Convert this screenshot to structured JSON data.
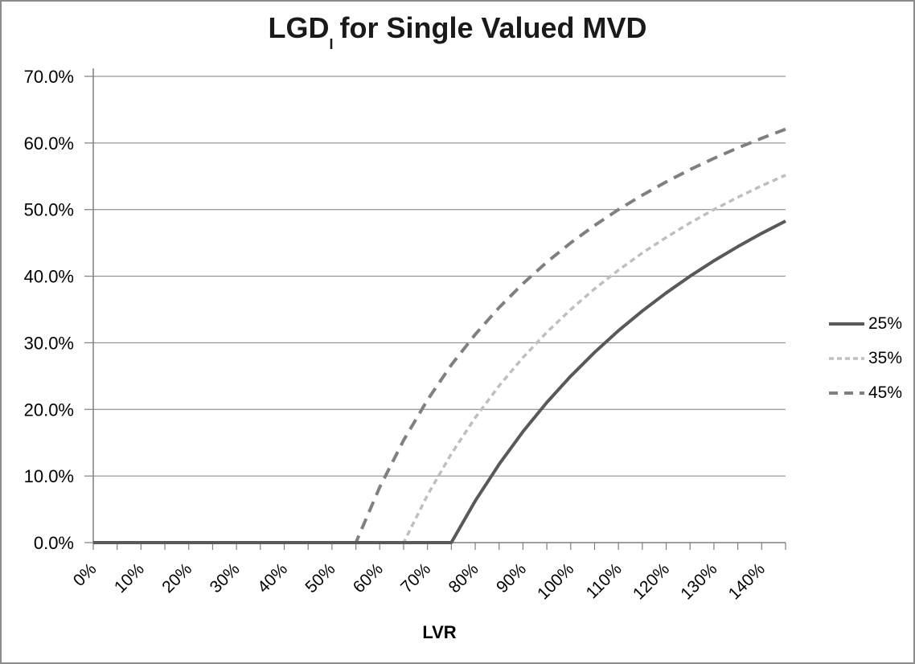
{
  "window": {
    "background": "#ffffff",
    "border_color": "#8c8c8c"
  },
  "title": {
    "prefix": "LGD",
    "subscript": "I",
    "suffix": "for Single Valued MVD"
  },
  "chart_data": {
    "type": "line",
    "title": "LGD_I for Single Valued MVD",
    "xlabel": "LVR",
    "ylabel": "",
    "x": [
      0,
      5,
      10,
      15,
      20,
      25,
      30,
      35,
      40,
      45,
      50,
      55,
      60,
      65,
      70,
      75,
      80,
      85,
      90,
      95,
      100,
      105,
      110,
      115,
      120,
      125,
      130,
      135,
      140,
      145
    ],
    "xlim": [
      0,
      145
    ],
    "ylim": [
      0,
      70
    ],
    "x_major_tick_step": 10,
    "x_minor_tick_step": 5,
    "y_tick_step": 10,
    "x_tick_labels": [
      "0%",
      "10%",
      "20%",
      "30%",
      "40%",
      "50%",
      "60%",
      "70%",
      "80%",
      "90%",
      "100%",
      "110%",
      "120%",
      "130%",
      "140%"
    ],
    "y_tick_labels": [
      "0.0%",
      "10.0%",
      "20.0%",
      "30.0%",
      "40.0%",
      "50.0%",
      "60.0%",
      "70.0%"
    ],
    "grid": "horizontal",
    "legend_position": "right",
    "axis_color": "#7f7f7f",
    "gridline_color": "#7f7f7f",
    "text_color": "#000000",
    "series": [
      {
        "name": "25%",
        "color": "#595959",
        "line_style": "solid",
        "stroke_width": 4,
        "values": [
          0,
          0,
          0,
          0,
          0,
          0,
          0,
          0,
          0,
          0,
          0,
          0,
          0,
          0,
          0,
          0,
          6.25,
          11.76,
          16.67,
          21.05,
          25,
          28.57,
          31.82,
          34.78,
          37.5,
          40,
          42.31,
          44.44,
          46.43,
          48.28
        ]
      },
      {
        "name": "35%",
        "color": "#bfbfbf",
        "line_style": "dash-short",
        "stroke_width": 3.5,
        "values": [
          0,
          0,
          0,
          0,
          0,
          0,
          0,
          0,
          0,
          0,
          0,
          0,
          0,
          0,
          7.14,
          13.33,
          18.75,
          23.53,
          27.78,
          31.58,
          35,
          38.1,
          40.91,
          43.48,
          45.83,
          48,
          50,
          51.85,
          53.57,
          55.17
        ]
      },
      {
        "name": "45%",
        "color": "#808080",
        "line_style": "dash-long",
        "stroke_width": 4,
        "values": [
          0,
          0,
          0,
          0,
          0,
          0,
          0,
          0,
          0,
          0,
          0,
          0,
          8.33,
          15.38,
          21.43,
          26.67,
          31.25,
          35.29,
          38.89,
          42.11,
          45,
          47.62,
          50,
          52.17,
          54.17,
          56,
          57.69,
          59.26,
          60.71,
          62.07
        ]
      }
    ]
  }
}
